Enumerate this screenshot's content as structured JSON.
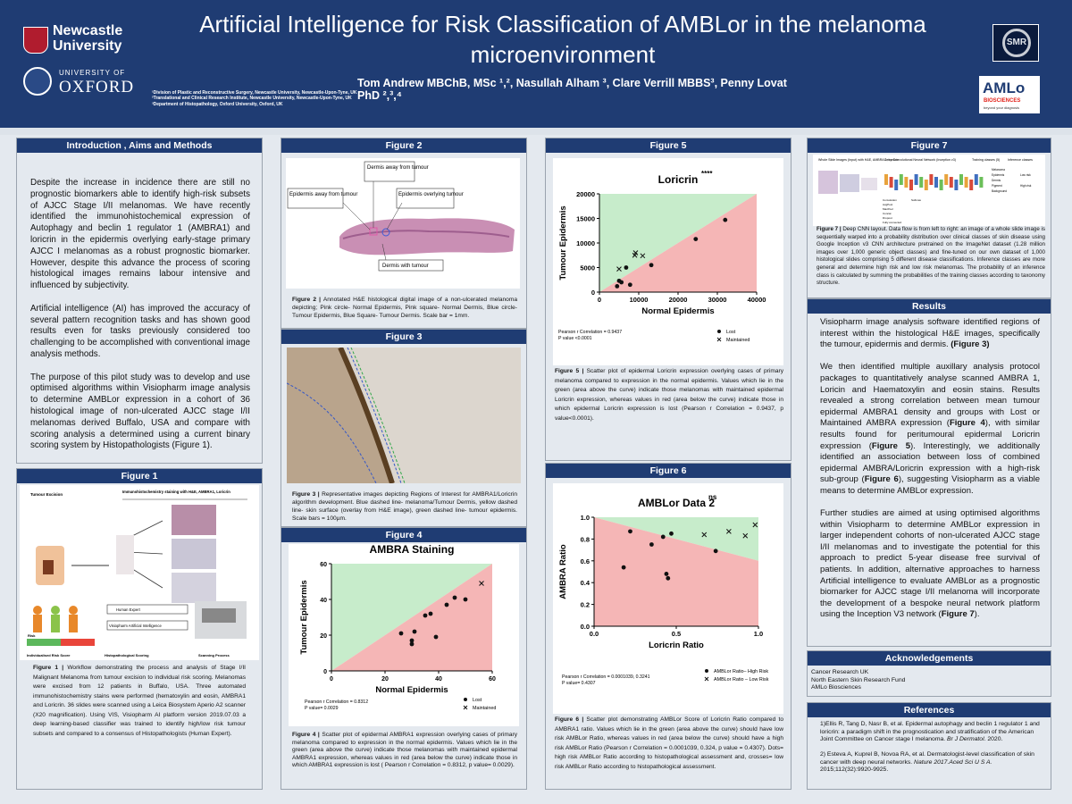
{
  "header": {
    "title": "Artificial Intelligence for Risk Classification of AMBLor in the melanoma microenvironment",
    "authors": "Tom Andrew MBChB, MSc ¹,², Nasullah Alham ³, Clare Verrill MBBS³, Penny Lovat PhD ²,³,⁴",
    "affiliations": [
      "¹Division of Plastic and Reconstructive Surgery, Newcastle University, Newcastle-Upon-Tyne, UK",
      "²Translational and Clinical Research Institute, Newcastle University, Newcastle-Upon-Tyne, UK",
      "³Department of Histopathology, Oxford University, Oxford, UK"
    ],
    "logos": {
      "newcastle": [
        "Newcastle",
        "University"
      ],
      "oxford": [
        "UNIVERSITY OF",
        "OXFORD"
      ],
      "smr": "SMR",
      "amlo": [
        "AMLo",
        "BIOSCIENCES",
        "beyond your diagnosis"
      ]
    }
  },
  "intro": {
    "heading": "Introduction , Aims and Methods",
    "paragraphs": [
      "Despite the increase in incidence there are still no prognostic biomarkers able to identify high-risk subsets of AJCC Stage I/II melanomas. We have recently identified the immunohistochemical expression of Autophagy and beclin 1 regulator 1 (AMBRA1) and loricrin in the epidermis overlying early-stage primary AJCC I melanomas as a robust prognostic biomarker. However, despite this advance the process of scoring histological images remains labour intensive and influenced by subjectivity.",
      "Artificial intelligence (AI) has improved the accuracy of several pattern recognition tasks and has shown good results even for tasks previously considered too challenging to be accomplished with conventional image analysis methods.",
      "The purpose of this pilot study was to develop and use optimised algorithms within Visiopharm image analysis to determine AMBLor expression in a cohort of 36 histological image of non-ulcerated AJCC stage I/II melanomas derived Buffalo, USA and compare with scoring analysis a determined using a current binary scoring system by Histopathologists (Figure 1)."
    ]
  },
  "fig1": {
    "heading": "Figure 1",
    "labels": [
      "Tumour Excision",
      "Immunohistochemistry staining with H&E, AMBRA1, Loricrin",
      "Human Expert",
      "Visiopharm Artificial Intelligence",
      "Risk",
      "Individualised Risk Score",
      "Histopathological Scoring",
      "Scanning Process"
    ],
    "caption_lead": "Figure 1 |",
    "caption": " Workflow demonstrating the process and analysis of Stage I/II Malignant Melanoma from tumour excision to individual risk scoring. Melanomas were excised from 12 patients in Buffalo, USA. Three automated immunohistochemistry stains were performed (hematoxylin and eosin, AMBRA1 and Loricrin. 36 slides were scanned using a Leica Biosystem Aperio A2 scanner (X20 magnification). Using VIS, Visiopharm AI platform version 2019.07.03 a deep learning-based classifier was trained to identify high/low risk tumour subsets and compared to a consensus of Histopathologists (Human Expert)."
  },
  "fig2": {
    "heading": "Figure 2",
    "labels": [
      "Dermis away from tumour",
      "Epidermis away from tumour",
      "Epidermis overlying tumour",
      "Dermis with tumour"
    ],
    "caption_lead": "Figure 2 |",
    "caption": " Annotated H&E histological digital image of a non-ulcerated melanoma depicting; Pink circle- Normal Epidermis, Pink square- Normal Dermis, Blue circle- Tumour Epidermis, Blue Square- Tumour Dermis.  Scale bar = 1mm."
  },
  "fig3": {
    "heading": "Figure 3",
    "caption_lead": "Figure 3 |",
    "caption": " Representative images depicting Regions of Interest for AMBRA1/Loricrin algorithm development. Blue dashed line- melanoma/Tumour Dermis, yellow dashed line- skin surface (overlay from H&E image), green dashed line- tumour epidermis.  Scale bars = 100µm."
  },
  "fig4": {
    "heading": "Figure 4",
    "caption_lead": "Figure 4 |",
    "caption": " Scatter plot of epidermal AMBRA1 expression overlying cases of primary melanoma compared to expression in the normal epidermis. Values which lie in the green (area above the curve) indicate those melanomas with maintained epidermal AMBRA1 expression, whereas values in red (area below the curve) indicate those in which AMBRA1 expression is lost ( Pearson r Correlation = 0.8312, p value= 0.0029)."
  },
  "fig5": {
    "heading": "Figure 5",
    "caption_lead": "Figure 5 |",
    "caption": " Scatter plot of epidermal Loricrin expression overlying cases of primary melanoma compared to expression in the normal epidermis. Values which lie in the green (area above the curve) indicate those melanomas with maintained epidermal Loricrin expression, whereas values in red (area below the curve) indicate those in which epidermal Loricrin expression is lost (Pearson r Correlation = 0.9437, p value<0.0001)."
  },
  "fig6": {
    "heading": "Figure 6",
    "caption_lead": "Figure 6 |",
    "caption": " Scatter plot demonstrating AMBLor Score of Loricrin Ratio compared to AMBRA1 ratio. Values which lie in the green (area above the curve) should have low risk AMBLor Ratio, whereas values in red (area below the curve) should have a high risk AMBLor Ratio (Pearson r Correlation = 0.0001039, 0.324, p value = 0.4307). Dots= high risk AMBLor Ratio according to histopathological assessment and, crosses= low risk AMBLor Ratio according to histopathological assessment."
  },
  "fig7": {
    "heading": "Figure 7",
    "labels": [
      "Whole Slide Images (Input) with H&E, AMBRA 1, Loricrin",
      "Deep Convolutional Neural Network (Inception v3)",
      "Training classes (5)",
      "Inference classes",
      "Melanoma",
      "Epidermis",
      "Dermis",
      "Pigment",
      "Background",
      "Low risk",
      "High risk",
      "Convolution",
      "AvgPool",
      "MaxPool",
      "Concat",
      "Dropout",
      "Fully connected",
      "Softmax"
    ],
    "caption_lead": "Figure 7 |",
    "caption": " Deep CNN layout. Data flow is from left to right: an image of a whole slide image is sequentially warped into a probability distribution over clinical classes of skin disease using Google Inception v3 CNN architecture pretrained on the ImageNet dataset (1.28 million images over 1,000 generic object classes) and fine-tuned on our own dataset of 1,000 histological slides comprising 5 different disease classifications. Inference classes are more general and determine high risk and low risk melanomas. The probability of an inference class is calculated by summing the probabilities of the training classes according to taxonomy structure."
  },
  "results": {
    "heading": "Results",
    "p1_a": "Visiopharm image analysis software identified regions of interest within the histological H&E images, specifically the tumour, epidermis and dermis. ",
    "p1_ref": "(Figure 3)",
    "p2_a": "We then identified multiple auxillary analysis protocol packages to quantitatively analyse scanned AMBRA 1, Loricin and Haematoxylin and eosin stains. Results revealed a strong correlation between mean tumour epidermal AMBRA1 density and groups with Lost or Maintained AMBRA expression (",
    "p2_f4": "Figure 4",
    "p2_b": "), with similar results found for peritumoural epidermal Loricrin expression (",
    "p2_f5": "Figure 5",
    "p2_c": "). Interestingly, we additionally identified an association between loss of combined epidermal AMBRA/Loricrin expression with a high-risk sub-group (",
    "p2_f6": "Figure 6",
    "p2_d": "), suggesting Visiopharm as a viable means to determine AMBLor expression.",
    "p3_a": "Further studies are aimed at using optimised algorithms within Visiopharm to determine AMBLor expression in larger independent cohorts of non-ulcerated AJCC stage I/II melanomas and to investigate the potential for this approach to predict 5-year disease free survival of patients. In addition, alternative approaches to harness Artificial intelligence to evaluate AMBLor as a prognostic biomarker for AJCC stage I/II melanoma will incorporate the development of a bespoke neural network platform using the Inception V3 network (",
    "p3_f7": "Figure 7",
    "p3_b": ")."
  },
  "ack": {
    "heading": "Acknowledgements",
    "items": [
      "Cancer Research UK",
      "North Eastern Skin Research Fund",
      "AMLo Biosciences"
    ]
  },
  "refs": {
    "heading": "References",
    "r1": "1)Ellis R, Tang D, Nasr B, et al. Epidermal autophagy and beclin 1 regulator 1 and loricrin: a paradigm shift in the prognostication and stratification of the American Joint Committee on Cancer stage I melanoma. ",
    "r1_it": "Br J Dermatol.",
    "r1_end": " 2020.",
    "r2": "2) Esteva A,  Kuprel B, Novoa RA, et al. Dermatologist-level classification of skin cancer with deep neural networks. ",
    "r2_it": "Nature 2017.Aced Sci U S A.",
    "r2_end": " 2015;112(32):9920-9925."
  },
  "chart_data": [
    {
      "type": "scatter",
      "title": "AMBRA Staining",
      "significance": "**",
      "xlabel": "Normal Epidermis",
      "ylabel": "Tumour Epidermis",
      "xlim": [
        0,
        60
      ],
      "ylim": [
        0,
        60
      ],
      "xticks": [
        0,
        20,
        40,
        60
      ],
      "yticks": [
        0,
        20,
        40,
        60
      ],
      "series": [
        {
          "name": "Lost",
          "marker": "dot",
          "points": [
            [
              26,
              21
            ],
            [
              30,
              17
            ],
            [
              30,
              15
            ],
            [
              31,
              22
            ],
            [
              35,
              31
            ],
            [
              37,
              32
            ],
            [
              39,
              19
            ],
            [
              43,
              37
            ],
            [
              46,
              41
            ],
            [
              50,
              40
            ]
          ]
        },
        {
          "name": "Maintained",
          "marker": "cross",
          "points": [
            [
              56,
              49
            ]
          ]
        }
      ],
      "stats": [
        "Pearson r Correlation = 0.8312",
        "P value= 0.0029"
      ],
      "colors": {
        "above": "#c7eccb",
        "below": "#f5b6b6"
      }
    },
    {
      "type": "scatter",
      "title": "Loricrin",
      "significance": "****",
      "xlabel": "Normal Epidermis",
      "ylabel": "Tumour Epidermis",
      "xlim": [
        0,
        40000
      ],
      "ylim": [
        0,
        20000
      ],
      "xticks": [
        0,
        10000,
        20000,
        30000,
        40000
      ],
      "yticks": [
        0,
        5000,
        10000,
        15000,
        20000
      ],
      "series": [
        {
          "name": "Lost",
          "marker": "dot",
          "points": [
            [
              4500,
              1200
            ],
            [
              5000,
              2300
            ],
            [
              5600,
              2000
            ],
            [
              7800,
              1500
            ],
            [
              6800,
              5000
            ],
            [
              13200,
              5500
            ],
            [
              24500,
              10800
            ],
            [
              32000,
              14700
            ]
          ]
        },
        {
          "name": "Maintained",
          "marker": "cross",
          "points": [
            [
              5000,
              4700
            ],
            [
              9000,
              7500
            ],
            [
              9200,
              8000
            ],
            [
              11000,
              7400
            ]
          ]
        }
      ],
      "stats": [
        "Pearson r Correlation = 0.9437",
        "P value <0.0001"
      ],
      "colors": {
        "above": "#c7eccb",
        "below": "#f5b6b6"
      }
    },
    {
      "type": "scatter",
      "title": "AMBLor Data 2",
      "significance": "ns",
      "xlabel": "Loricrin Ratio",
      "ylabel": "AMBRA Ratio",
      "xlim": [
        0,
        1
      ],
      "ylim": [
        0,
        1
      ],
      "xticks": [
        "0.0",
        "0.5",
        "1.0"
      ],
      "yticks": [
        "0.0",
        "0.2",
        "0.4",
        "0.6",
        "0.8",
        "1.0"
      ],
      "series": [
        {
          "name": "AMBLor Ratio– High Risk",
          "marker": "dot",
          "points": [
            [
              0.18,
              0.54
            ],
            [
              0.22,
              0.87
            ],
            [
              0.35,
              0.75
            ],
            [
              0.42,
              0.82
            ],
            [
              0.44,
              0.48
            ],
            [
              0.45,
              0.44
            ],
            [
              0.47,
              0.85
            ],
            [
              0.74,
              0.69
            ]
          ]
        },
        {
          "name": "AMBLor Ratio – Low Risk",
          "marker": "cross",
          "points": [
            [
              0.67,
              0.84
            ],
            [
              0.82,
              0.87
            ],
            [
              0.92,
              0.83
            ],
            [
              0.98,
              0.93
            ]
          ]
        }
      ],
      "stats": [
        "Pearson r Correlation = 0.0001039, 0.3241",
        "P value= 0.4307"
      ],
      "colors": {
        "above": "#c7eccb",
        "below": "#f5b6b6"
      }
    }
  ]
}
